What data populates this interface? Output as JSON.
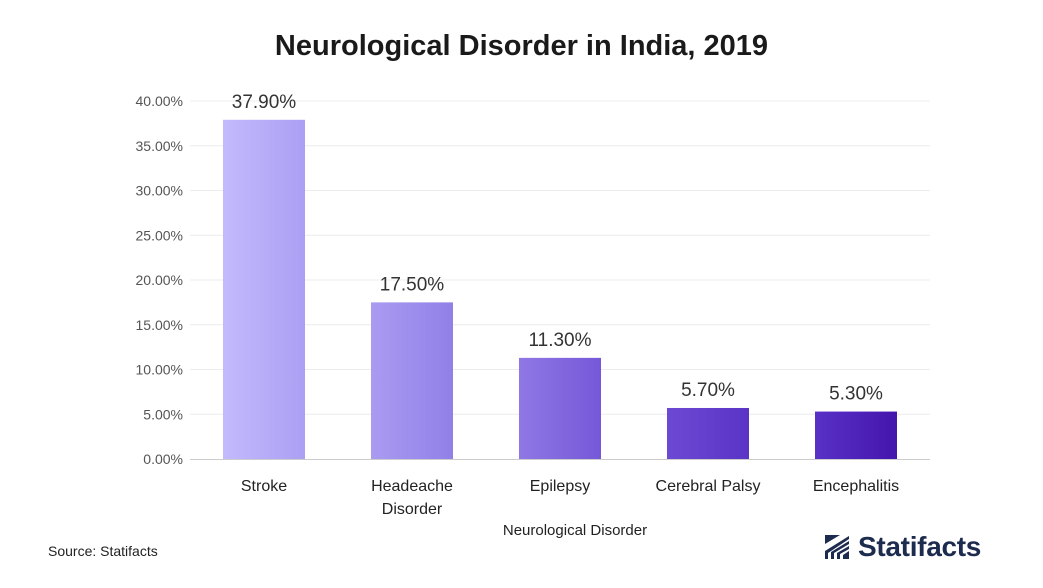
{
  "source": "Source: Statifacts",
  "brand": {
    "name": "Statifacts",
    "icon": "statifacts-logo-icon",
    "color": "#1d2b4f"
  },
  "chart_data": {
    "type": "bar",
    "title": "Neurological Disorder in India, 2019",
    "xlabel": "Neurological Disorder",
    "ylabel": "",
    "categories": [
      "Stroke",
      "Headeache Disorder",
      "Epilepsy",
      "Cerebral Palsy",
      "Encephalitis"
    ],
    "values": [
      37.9,
      17.5,
      11.3,
      5.7,
      5.3
    ],
    "value_labels": [
      "37.90%",
      "17.50%",
      "11.30%",
      "5.70%",
      "5.30%"
    ],
    "ylim": [
      0,
      40
    ],
    "yticks": [
      0,
      5,
      10,
      15,
      20,
      25,
      30,
      35,
      40
    ],
    "ytick_labels": [
      "0.00%",
      "5.00%",
      "10.00%",
      "15.00%",
      "20.00%",
      "25.00%",
      "30.00%",
      "35.00%",
      "40.00%"
    ],
    "bar_gradients": [
      [
        "#c3bafd",
        "#ab9ff3"
      ],
      [
        "#aa9bf1",
        "#9180e8"
      ],
      [
        "#8f78e5",
        "#7558d8"
      ],
      [
        "#6c49d3",
        "#5a34c6"
      ],
      [
        "#5831c7",
        "#4515ad"
      ]
    ],
    "grid": true,
    "legend": "none"
  }
}
